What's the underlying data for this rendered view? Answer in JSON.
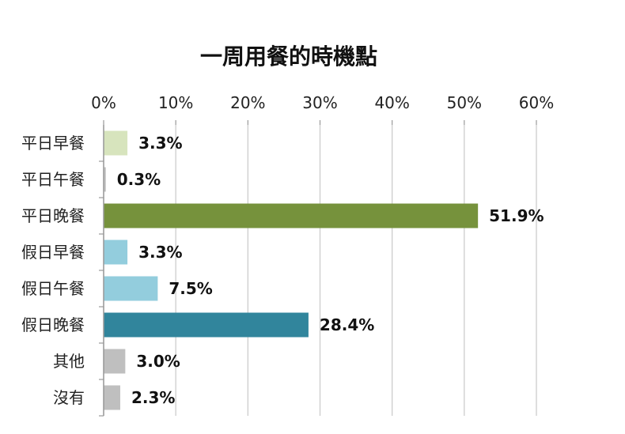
{
  "chart_data": {
    "type": "bar",
    "orientation": "horizontal",
    "title": "一周用餐的時機點",
    "xlim": [
      0,
      60
    ],
    "x_ticks": [
      "0%",
      "10%",
      "20%",
      "30%",
      "40%",
      "50%",
      "60%"
    ],
    "x_axis_position": "top",
    "grid": true,
    "legend": "none",
    "categories": [
      "平日早餐",
      "平日午餐",
      "平日晚餐",
      "假日早餐",
      "假日午餐",
      "假日晚餐",
      "其他",
      "沒有"
    ],
    "values": [
      3.3,
      0.3,
      51.9,
      3.3,
      7.5,
      28.4,
      3.0,
      2.3
    ],
    "value_labels": [
      "3.3%",
      "0.3%",
      "51.9%",
      "3.3%",
      "7.5%",
      "28.4%",
      "3.0%",
      "2.3%"
    ],
    "colors": [
      "#d7e4bd",
      "#c0c0c0",
      "#76923c",
      "#93cddd",
      "#93cddd",
      "#31859c",
      "#bfbfbf",
      "#bfbfbf"
    ]
  }
}
